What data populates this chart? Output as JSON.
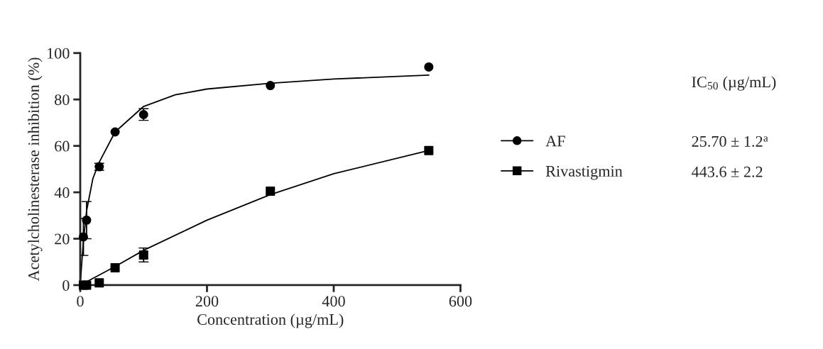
{
  "chart_data": {
    "type": "scatter",
    "xlabel": "Concentration (µg/mL)",
    "ylabel": "Acetylcholinesterase inhibition (%)",
    "legend_title": "IC$_{50}$ (µg/mL)",
    "xlim": [
      0,
      600
    ],
    "xticks": [
      0,
      200,
      400,
      600
    ],
    "ylim": [
      0,
      100
    ],
    "yticks": [
      0,
      20,
      40,
      60,
      80,
      100
    ],
    "grid": false,
    "legend": "right",
    "series": [
      {
        "name": "AF",
        "marker": "circle",
        "color": "#000000",
        "x": [
          5,
          10,
          30,
          55,
          100,
          300,
          550
        ],
        "values": [
          20.8,
          28,
          51,
          66,
          73.5,
          86,
          94
        ],
        "errors": [
          8,
          8,
          1.5,
          null,
          2.5,
          null,
          null
        ]
      },
      {
        "type": "line",
        "color": "#000000",
        "marker": "none",
        "x": [
          0,
          2,
          5,
          10,
          20,
          30,
          55,
          100,
          150,
          200,
          300,
          400,
          550
        ],
        "values": [
          0,
          8,
          19,
          32,
          46,
          53,
          66,
          77,
          82,
          84.5,
          87,
          88.8,
          90.5
        ]
      },
      {
        "name": "Rivastigmin",
        "marker": "square",
        "color": "#000000",
        "x": [
          5,
          10,
          30,
          55,
          100,
          300,
          550
        ],
        "values": [
          0,
          0,
          1,
          7.5,
          13,
          40.5,
          58
        ],
        "errors": [
          null,
          null,
          null,
          null,
          3,
          null,
          null
        ]
      },
      {
        "type": "line",
        "color": "#000000",
        "marker": "none",
        "x": [
          0,
          55,
          100,
          200,
          300,
          400,
          550
        ],
        "values": [
          0,
          8,
          15,
          28,
          39,
          48,
          58
        ]
      }
    ],
    "annotations": [
      "25.70 ± 1.2$^{a}$",
      "443.6 ± 2.2"
    ]
  }
}
